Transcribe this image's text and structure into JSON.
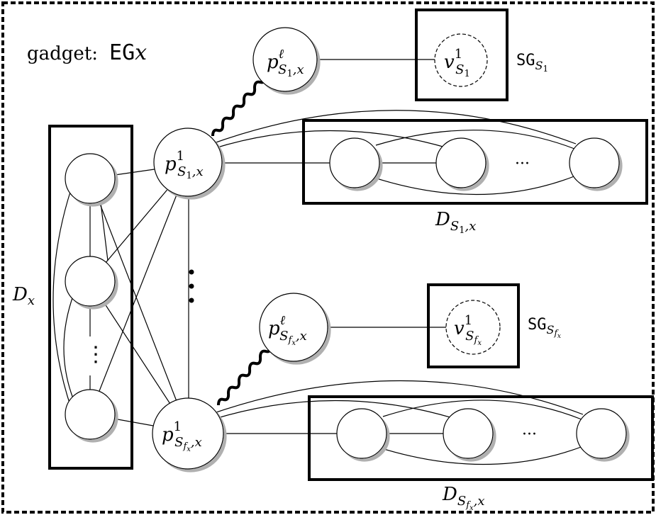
{
  "gadget": {
    "label": "gadget:",
    "name_main": "EG",
    "name_sub": "x"
  },
  "nodes": {
    "p_l_s1": {
      "main": "p",
      "sup": "ℓ",
      "sub": "S",
      "subsub": "1",
      "tail": ",x"
    },
    "p_1_s1": {
      "main": "p",
      "sup": "1",
      "sub": "S",
      "subsub": "1",
      "tail": ",x"
    },
    "v_1_s1": {
      "main": "v",
      "sup": "1",
      "sub": "S",
      "subsub": "1",
      "tail": ""
    },
    "p_l_sf": {
      "main": "p",
      "sup": "ℓ",
      "sub": "S",
      "subsub": "f",
      "subsubsub": "x",
      "tail": ",x"
    },
    "p_1_sf": {
      "main": "p",
      "sup": "1",
      "sub": "S",
      "subsub": "f",
      "subsubsub": "x",
      "tail": ",x"
    },
    "v_1_sf": {
      "main": "v",
      "sup": "1",
      "sub": "S",
      "subsub": "f",
      "subsubsub": "x",
      "tail": ""
    }
  },
  "labels": {
    "sg_s1": {
      "main": "SG",
      "sub": "S",
      "subsub": "1"
    },
    "sg_sf": {
      "main": "SG",
      "sub": "S",
      "subsub": "f",
      "subsubsub": "x"
    },
    "d_x": {
      "main": "D",
      "sub": "x"
    },
    "d_s1": {
      "main": "D",
      "sub": "S",
      "subsub": "1",
      "tail": ",x"
    },
    "d_sf": {
      "main": "D",
      "sub": "S",
      "subsub": "f",
      "subsubsub": "x",
      "tail": ",x"
    }
  },
  "ellipsis": {
    "horizontal": "···",
    "vertical": "⋮"
  }
}
